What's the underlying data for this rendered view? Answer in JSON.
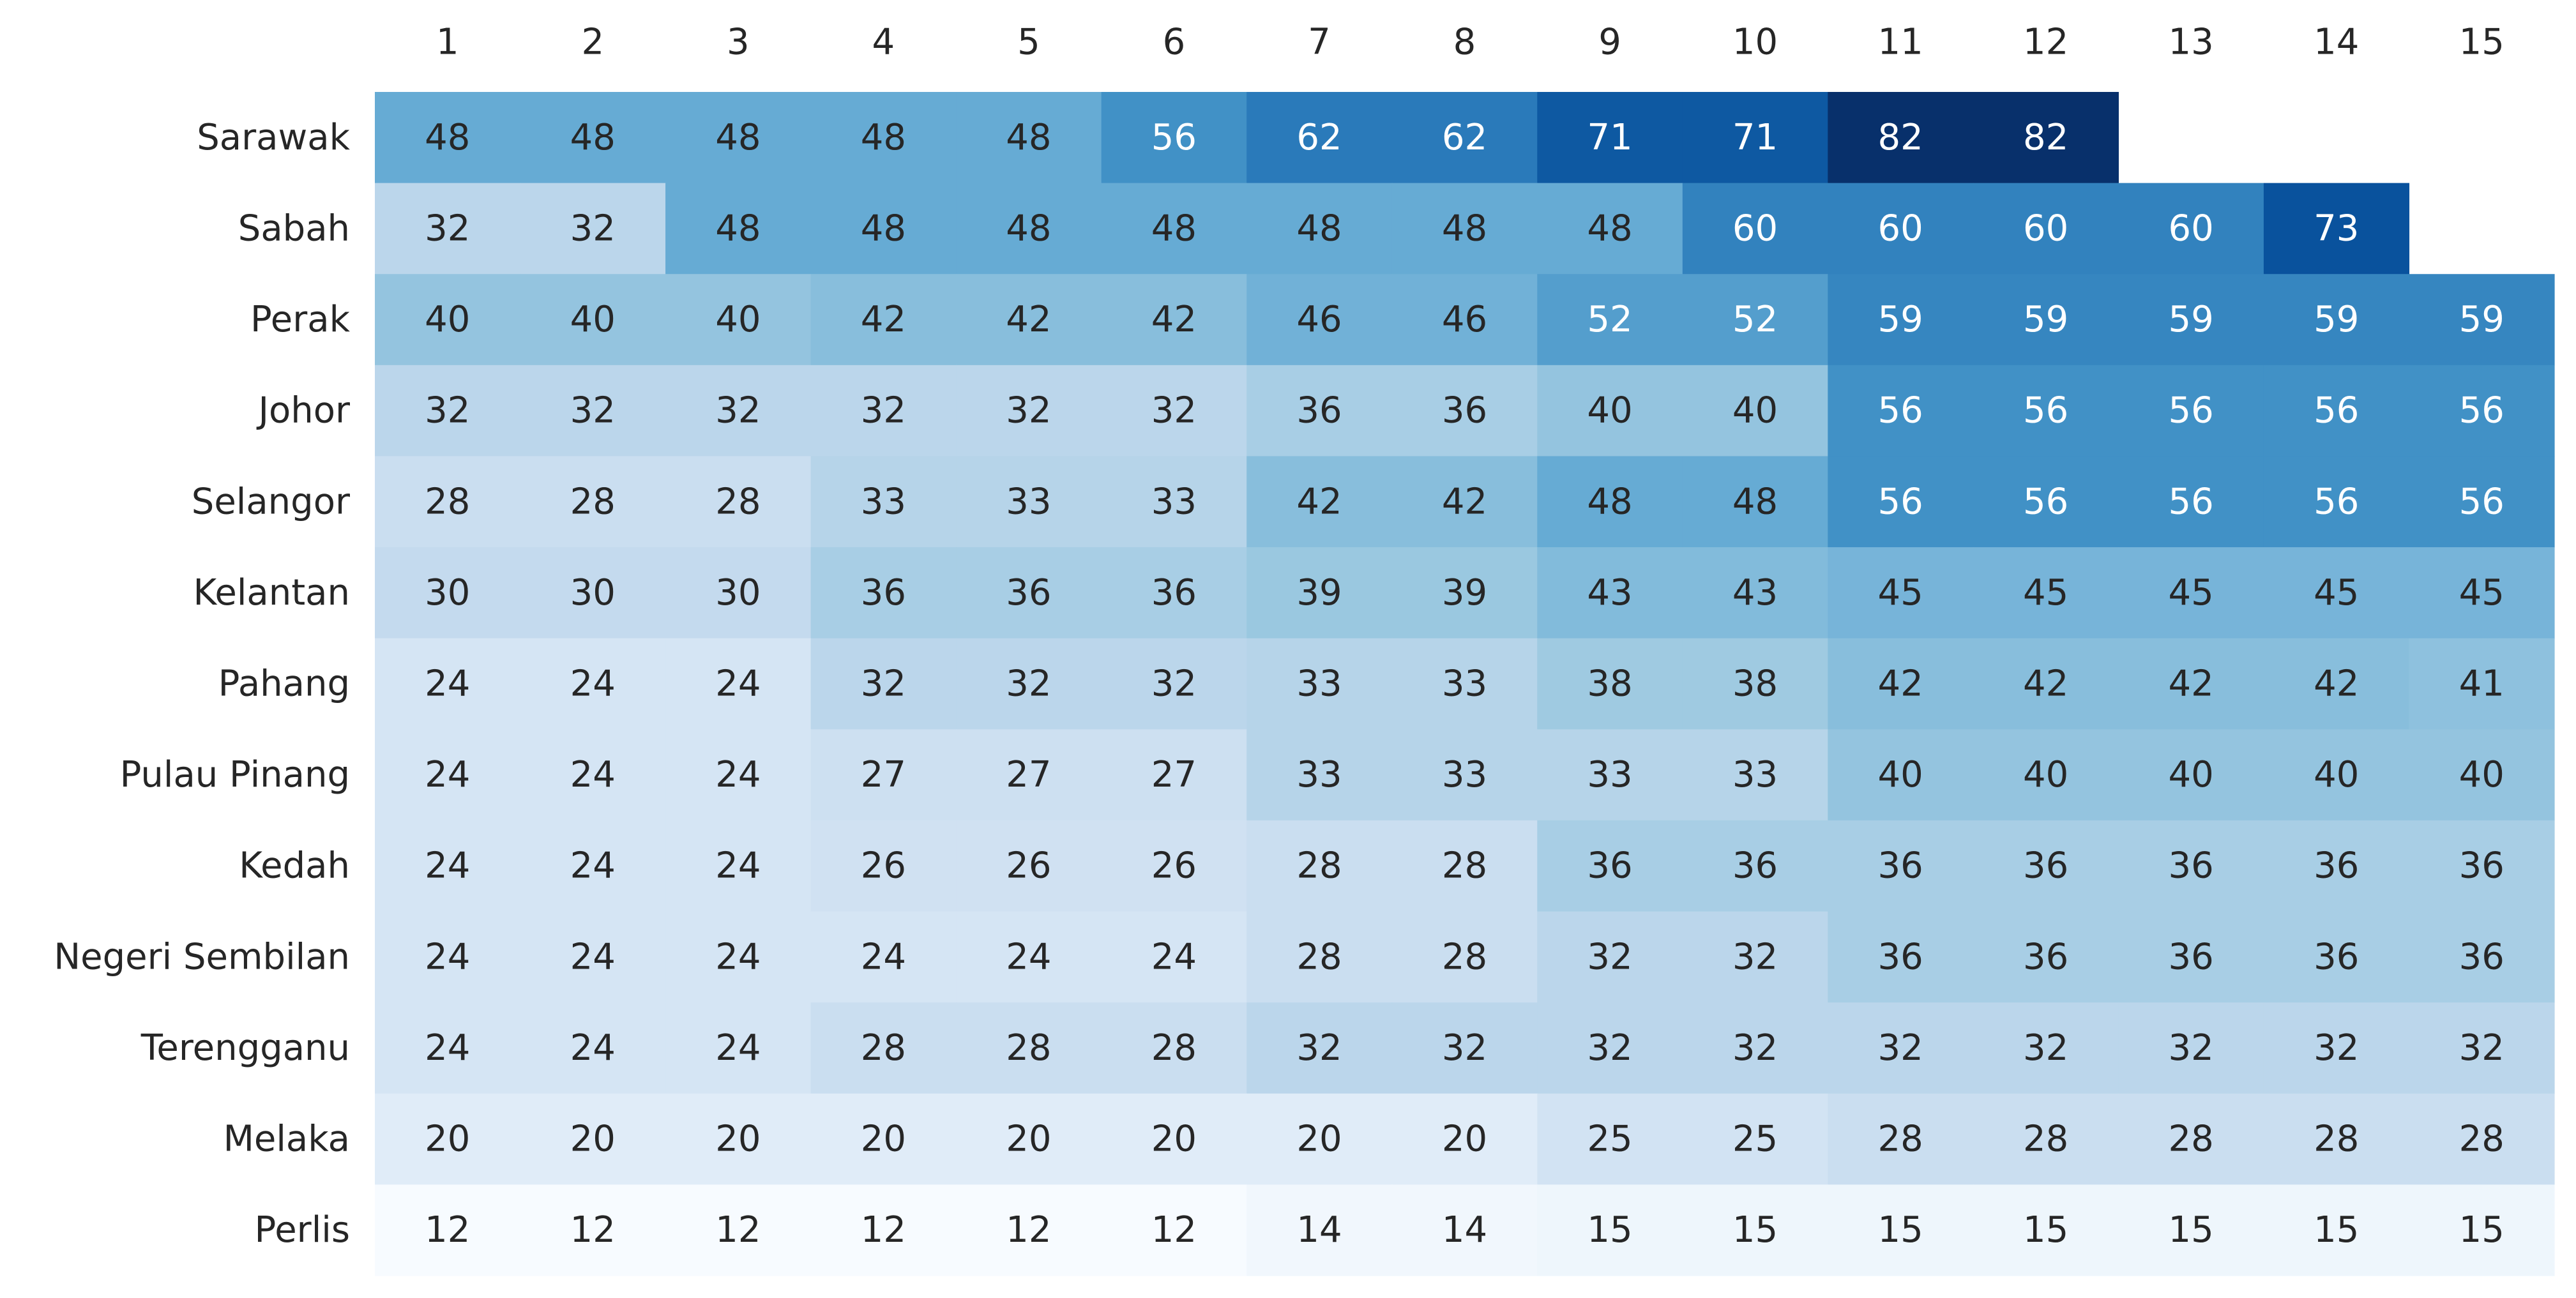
{
  "chart_data": {
    "type": "heatmap",
    "title": "",
    "xlabel": "",
    "ylabel": "",
    "color_scale": "Blues",
    "value_range": [
      12,
      82
    ],
    "x": [
      "1",
      "2",
      "3",
      "4",
      "5",
      "6",
      "7",
      "8",
      "9",
      "10",
      "11",
      "12",
      "13",
      "14",
      "15"
    ],
    "y": [
      "Sarawak",
      "Sabah",
      "Perak",
      "Johor",
      "Selangor",
      "Kelantan",
      "Pahang",
      "Pulau Pinang",
      "Kedah",
      "Negeri Sembilan",
      "Terengganu",
      "Melaka",
      "Perlis"
    ],
    "values": [
      [
        48,
        48,
        48,
        48,
        48,
        56,
        62,
        62,
        71,
        71,
        82,
        82,
        null,
        null,
        null
      ],
      [
        32,
        32,
        48,
        48,
        48,
        48,
        48,
        48,
        48,
        60,
        60,
        60,
        60,
        73,
        null
      ],
      [
        40,
        40,
        40,
        42,
        42,
        42,
        46,
        46,
        52,
        52,
        59,
        59,
        59,
        59,
        59
      ],
      [
        32,
        32,
        32,
        32,
        32,
        32,
        36,
        36,
        40,
        40,
        56,
        56,
        56,
        56,
        56
      ],
      [
        28,
        28,
        28,
        33,
        33,
        33,
        42,
        42,
        48,
        48,
        56,
        56,
        56,
        56,
        56
      ],
      [
        30,
        30,
        30,
        36,
        36,
        36,
        39,
        39,
        43,
        43,
        45,
        45,
        45,
        45,
        45
      ],
      [
        24,
        24,
        24,
        32,
        32,
        32,
        33,
        33,
        38,
        38,
        42,
        42,
        42,
        42,
        41
      ],
      [
        24,
        24,
        24,
        27,
        27,
        27,
        33,
        33,
        33,
        33,
        40,
        40,
        40,
        40,
        40
      ],
      [
        24,
        24,
        24,
        26,
        26,
        26,
        28,
        28,
        36,
        36,
        36,
        36,
        36,
        36,
        36
      ],
      [
        24,
        24,
        24,
        24,
        24,
        24,
        28,
        28,
        32,
        32,
        36,
        36,
        36,
        36,
        36
      ],
      [
        24,
        24,
        24,
        28,
        28,
        28,
        32,
        32,
        32,
        32,
        32,
        32,
        32,
        32,
        32
      ],
      [
        20,
        20,
        20,
        20,
        20,
        20,
        20,
        20,
        25,
        25,
        28,
        28,
        28,
        28,
        28
      ],
      [
        12,
        12,
        12,
        12,
        12,
        12,
        14,
        14,
        15,
        15,
        15,
        15,
        15,
        15,
        15
      ]
    ],
    "legend": "none",
    "grid": false
  },
  "colors": {
    "scale_stops": [
      "#f7fbff",
      "#deebf7",
      "#c6dbef",
      "#9ecae1",
      "#6baed6",
      "#4292c6",
      "#2171b5",
      "#08519c",
      "#08306b"
    ],
    "text_dark": "#262626",
    "text_light": "#ffffff",
    "background": "#ffffff"
  }
}
